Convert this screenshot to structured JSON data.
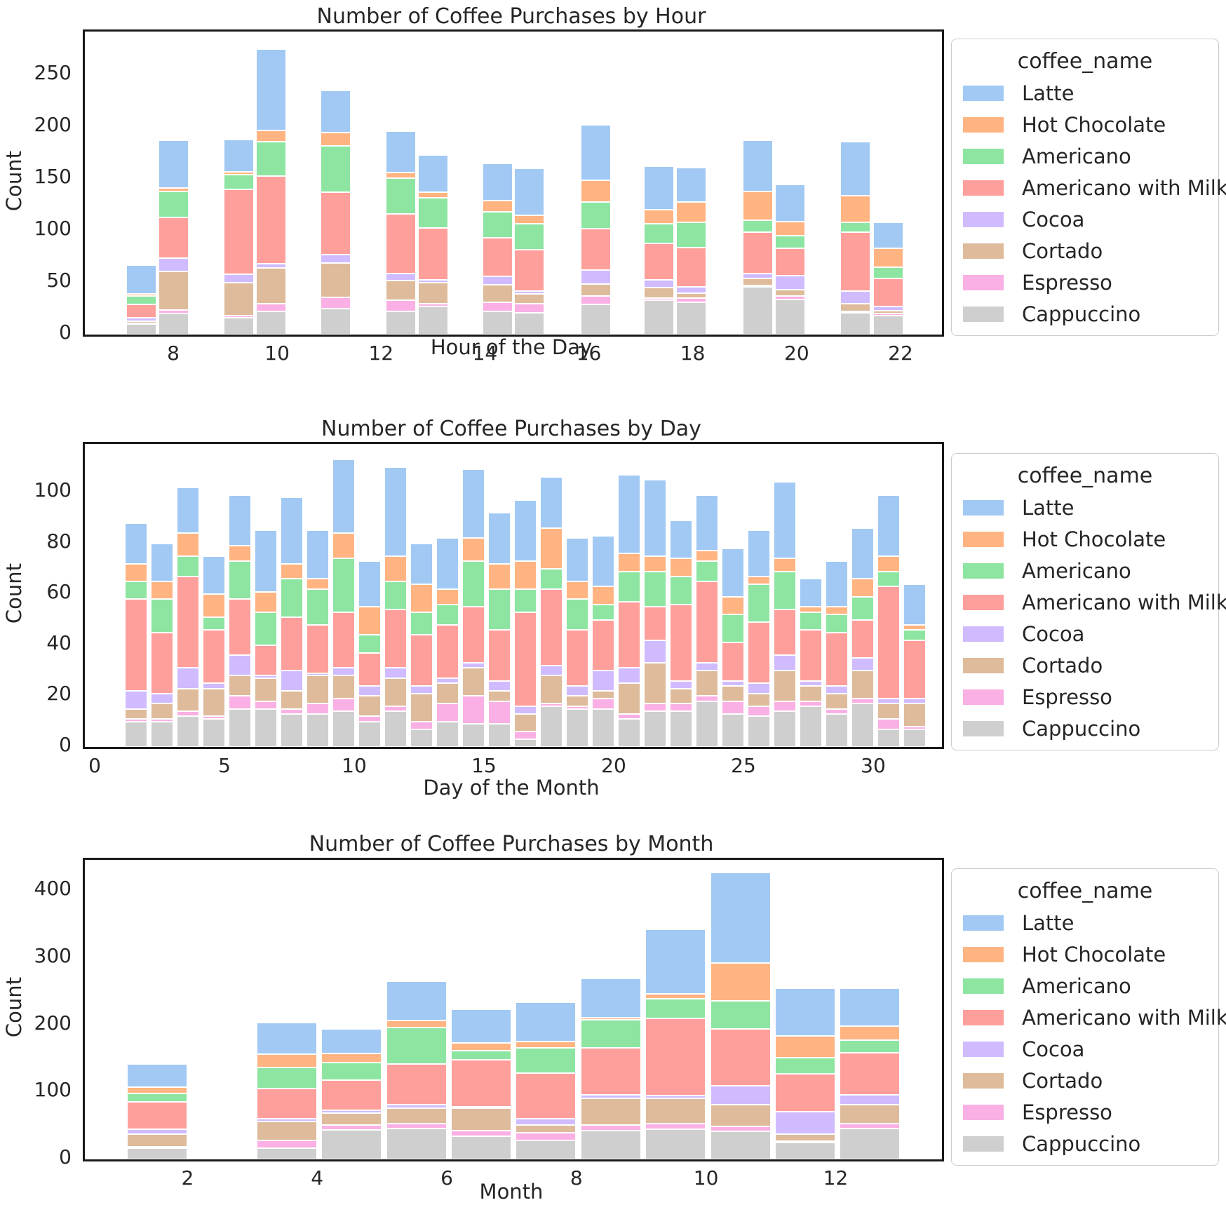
{
  "figure": {
    "background": "#ffffff",
    "text_color": "#262626",
    "spine_color": "#1a1a1a"
  },
  "legend": {
    "title": "coffee_name",
    "items": [
      {
        "label": "Latte",
        "color": "#a1c9f4"
      },
      {
        "label": "Hot Chocolate",
        "color": "#ffb482"
      },
      {
        "label": "Americano",
        "color": "#8de5a1"
      },
      {
        "label": "Americano with Milk",
        "color": "#ff9f9b"
      },
      {
        "label": "Cocoa",
        "color": "#d0bbff"
      },
      {
        "label": "Cortado",
        "color": "#debb9b"
      },
      {
        "label": "Espresso",
        "color": "#fab0e4"
      },
      {
        "label": "Cappuccino",
        "color": "#cfcfcf"
      }
    ]
  },
  "chart_data": [
    {
      "type": "bar",
      "stacked": true,
      "title": "Number of Coffee Purchases by Hour",
      "xlabel": "Hour of the Day",
      "ylabel": "Count",
      "legend_position": "right",
      "grid": false,
      "x": [
        7,
        8,
        9,
        10,
        11,
        12,
        13,
        14,
        15,
        16,
        17,
        18,
        19,
        20,
        21,
        22
      ],
      "xticks": [
        8,
        10,
        12,
        14,
        16,
        18,
        20,
        22
      ],
      "yticks": [
        0,
        50,
        100,
        150,
        200,
        250
      ],
      "ylim": [
        0,
        292
      ],
      "stack_order_bottom_to_top": [
        "Cappuccino",
        "Espresso",
        "Cortado",
        "Cocoa",
        "Americano with Milk",
        "Americano",
        "Hot Chocolate",
        "Latte"
      ],
      "series": [
        {
          "name": "Latte",
          "values": [
            28,
            46,
            31,
            78,
            40,
            40,
            36,
            36,
            45,
            53,
            42,
            33,
            49,
            36,
            52,
            25
          ]
        },
        {
          "name": "Hot Chocolate",
          "values": [
            2,
            3,
            3,
            11,
            13,
            5,
            5,
            11,
            8,
            21,
            13,
            20,
            28,
            14,
            26,
            18
          ]
        },
        {
          "name": "Americano",
          "values": [
            8,
            25,
            14,
            33,
            45,
            35,
            29,
            25,
            25,
            26,
            19,
            24,
            11,
            12,
            9,
            11
          ]
        },
        {
          "name": "Americano with Milk",
          "values": [
            13,
            39,
            82,
            85,
            60,
            57,
            50,
            37,
            40,
            40,
            35,
            38,
            40,
            26,
            57,
            27
          ]
        },
        {
          "name": "Cocoa",
          "values": [
            3,
            13,
            8,
            4,
            8,
            7,
            3,
            8,
            3,
            13,
            8,
            6,
            5,
            14,
            12,
            4
          ]
        },
        {
          "name": "Cortado",
          "values": [
            2,
            37,
            32,
            34,
            33,
            19,
            20,
            17,
            9,
            12,
            10,
            5,
            7,
            6,
            8,
            3
          ]
        },
        {
          "name": "Espresso",
          "values": [
            1,
            4,
            2,
            8,
            11,
            11,
            3,
            9,
            9,
            8,
            2,
            4,
            1,
            3,
            1,
            2
          ]
        },
        {
          "name": "Cappuccino",
          "values": [
            10,
            20,
            16,
            22,
            25,
            22,
            27,
            22,
            21,
            29,
            33,
            31,
            46,
            34,
            21,
            18
          ]
        }
      ]
    },
    {
      "type": "bar",
      "stacked": true,
      "title": "Number of Coffee Purchases by Day",
      "xlabel": "Day of the Month",
      "ylabel": "Count",
      "legend_position": "right",
      "grid": false,
      "x": [
        1,
        2,
        3,
        4,
        5,
        6,
        7,
        8,
        9,
        10,
        11,
        12,
        13,
        14,
        15,
        16,
        17,
        18,
        19,
        20,
        21,
        22,
        23,
        24,
        25,
        26,
        27,
        28,
        29,
        30,
        31
      ],
      "xticks": [
        0,
        5,
        10,
        15,
        20,
        25,
        30
      ],
      "yticks": [
        0,
        20,
        40,
        60,
        80,
        100
      ],
      "ylim": [
        0,
        119
      ],
      "stack_order_bottom_to_top": [
        "Cappuccino",
        "Espresso",
        "Cortado",
        "Cocoa",
        "Americano with Milk",
        "Americano",
        "Hot Chocolate",
        "Latte"
      ],
      "series": [
        {
          "name": "Latte",
          "values": [
            16,
            15,
            18,
            15,
            20,
            24,
            26,
            19,
            29,
            18,
            35,
            16,
            20,
            27,
            20,
            24,
            20,
            17,
            20,
            31,
            30,
            15,
            22,
            19,
            18,
            30,
            11,
            18,
            20,
            24,
            16
          ]
        },
        {
          "name": "Hot Chocolate",
          "values": [
            7,
            7,
            9,
            9,
            6,
            8,
            6,
            4,
            10,
            11,
            10,
            11,
            6,
            9,
            10,
            11,
            16,
            7,
            7,
            7,
            6,
            7,
            4,
            7,
            3,
            5,
            2,
            3,
            7,
            6,
            2
          ]
        },
        {
          "name": "Americano",
          "values": [
            7,
            13,
            8,
            5,
            15,
            13,
            15,
            14,
            21,
            7,
            11,
            9,
            8,
            18,
            16,
            9,
            8,
            12,
            6,
            12,
            14,
            11,
            8,
            11,
            15,
            15,
            7,
            7,
            9,
            6,
            4
          ]
        },
        {
          "name": "Americano with Milk",
          "values": [
            36,
            24,
            36,
            21,
            22,
            12,
            21,
            19,
            22,
            13,
            23,
            20,
            21,
            22,
            20,
            37,
            30,
            22,
            20,
            26,
            13,
            30,
            32,
            15,
            24,
            18,
            20,
            21,
            15,
            44,
            23
          ]
        },
        {
          "name": "Cocoa",
          "values": [
            7,
            4,
            8,
            2,
            8,
            1,
            8,
            1,
            3,
            4,
            4,
            3,
            2,
            2,
            4,
            3,
            4,
            4,
            8,
            6,
            9,
            3,
            3,
            2,
            4,
            6,
            2,
            3,
            5,
            2,
            2
          ]
        },
        {
          "name": "Cortado",
          "values": [
            4,
            6,
            9,
            11,
            8,
            9,
            7,
            11,
            9,
            8,
            11,
            11,
            8,
            11,
            4,
            7,
            11,
            4,
            3,
            12,
            16,
            6,
            10,
            6,
            5,
            12,
            6,
            6,
            11,
            6,
            9
          ]
        },
        {
          "name": "Espresso",
          "values": [
            1,
            1,
            2,
            1,
            5,
            3,
            2,
            4,
            5,
            2,
            2,
            3,
            7,
            11,
            9,
            3,
            1,
            1,
            4,
            2,
            3,
            3,
            2,
            5,
            4,
            4,
            2,
            2,
            2,
            4,
            1
          ]
        },
        {
          "name": "Cappuccino",
          "values": [
            10,
            10,
            12,
            11,
            15,
            15,
            13,
            13,
            14,
            10,
            14,
            7,
            10,
            9,
            9,
            3,
            16,
            15,
            15,
            11,
            14,
            14,
            18,
            13,
            12,
            14,
            16,
            13,
            17,
            7,
            7
          ]
        }
      ]
    },
    {
      "type": "bar",
      "stacked": true,
      "title": "Number of Coffee Purchases by Month",
      "xlabel": "Month",
      "ylabel": "Count",
      "legend_position": "right",
      "grid": false,
      "x": [
        1,
        2,
        3,
        4,
        5,
        6,
        7,
        8,
        9,
        10,
        11,
        12
      ],
      "xticks": [
        2,
        4,
        6,
        8,
        10,
        12
      ],
      "yticks": [
        0,
        100,
        200,
        300,
        400
      ],
      "ylim": [
        0,
        446
      ],
      "stack_order_bottom_to_top": [
        "Cappuccino",
        "Espresso",
        "Cortado",
        "Cocoa",
        "Americano with Milk",
        "Americano",
        "Hot Chocolate",
        "Latte"
      ],
      "series": [
        {
          "name": "Latte",
          "values": [
            34,
            0,
            47,
            36,
            58,
            51,
            59,
            59,
            96,
            135,
            71,
            57
          ]
        },
        {
          "name": "Hot Chocolate",
          "values": [
            10,
            0,
            20,
            14,
            11,
            11,
            9,
            3,
            8,
            56,
            33,
            20
          ]
        },
        {
          "name": "Americano",
          "values": [
            12,
            0,
            32,
            26,
            54,
            14,
            38,
            42,
            29,
            42,
            24,
            19
          ]
        },
        {
          "name": "Americano with Milk",
          "values": [
            41,
            0,
            44,
            45,
            61,
            70,
            67,
            70,
            115,
            84,
            56,
            63
          ]
        },
        {
          "name": "Cocoa",
          "values": [
            7,
            0,
            5,
            4,
            5,
            2,
            10,
            5,
            4,
            28,
            33,
            15
          ]
        },
        {
          "name": "Cortado",
          "values": [
            19,
            0,
            28,
            18,
            23,
            33,
            11,
            40,
            38,
            33,
            11,
            28
          ]
        },
        {
          "name": "Espresso",
          "values": [
            2,
            0,
            11,
            7,
            7,
            8,
            12,
            8,
            8,
            7,
            2,
            7
          ]
        },
        {
          "name": "Cappuccino",
          "values": [
            17,
            0,
            17,
            44,
            46,
            35,
            28,
            43,
            45,
            42,
            25,
            46
          ]
        }
      ]
    }
  ]
}
